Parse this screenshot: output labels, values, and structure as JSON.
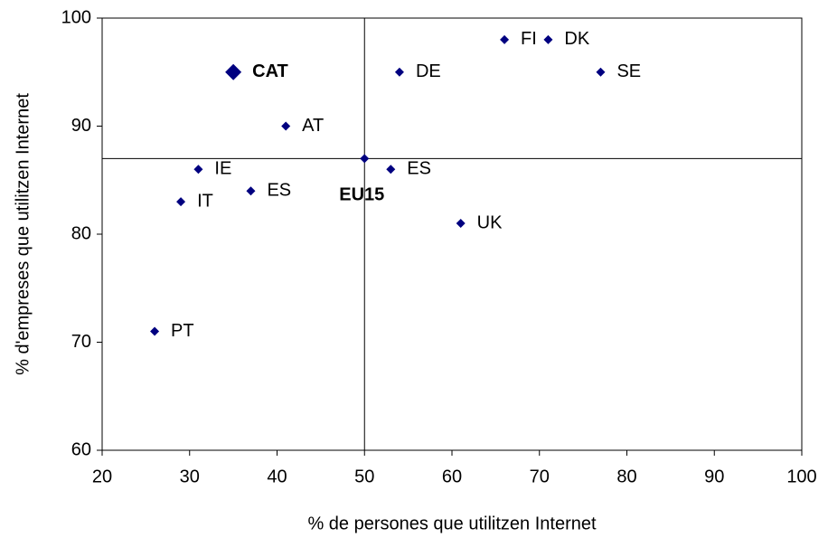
{
  "chart_data": {
    "type": "scatter",
    "xlabel": "% de persones que utilitzen Internet",
    "ylabel": "% d'empreses que utilitzen Internet",
    "point_labels": [
      "CAT",
      "AT",
      "IE",
      "ES",
      "IT",
      "PT",
      "EU15",
      "ES",
      "DE",
      "FI",
      "DK",
      "SE",
      "UK"
    ],
    "x": [
      35,
      41,
      31,
      37,
      29,
      26,
      50,
      53,
      54,
      66,
      71,
      77,
      61
    ],
    "values": [
      95,
      90,
      86,
      84,
      83,
      71,
      87,
      86,
      95,
      98,
      98,
      95,
      81
    ],
    "color": "#000080",
    "reference_lines": {
      "x": 50,
      "y": 87
    },
    "xlim": [
      20,
      100
    ],
    "xticks": [
      20,
      30,
      40,
      50,
      60,
      70,
      80,
      90,
      100
    ],
    "ylim": [
      60,
      100
    ],
    "yticks": [
      60,
      70,
      80,
      90,
      100
    ],
    "grid": false
  }
}
